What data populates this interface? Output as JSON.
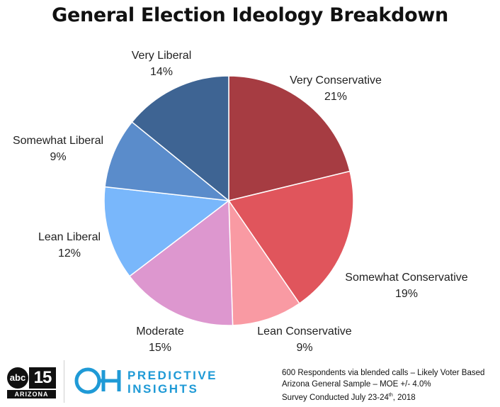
{
  "title": "General Election Ideology Breakdown",
  "chart_data": {
    "type": "pie",
    "title": "General Election Ideology Breakdown",
    "start_angle_deg": 0,
    "direction": "clockwise",
    "slices": [
      {
        "label": "Very Conservative",
        "value": 21,
        "value_label": "21%",
        "color": "#a63c42"
      },
      {
        "label": "Somewhat Conservative",
        "value": 19,
        "value_label": "19%",
        "color": "#e0555c"
      },
      {
        "label": "Lean Conservative",
        "value": 9,
        "value_label": "9%",
        "color": "#f99aa3"
      },
      {
        "label": "Moderate",
        "value": 15,
        "value_label": "15%",
        "color": "#dd97cf"
      },
      {
        "label": "Lean Liberal",
        "value": 12,
        "value_label": "12%",
        "color": "#79b7fb"
      },
      {
        "label": "Somewhat Liberal",
        "value": 9,
        "value_label": "9%",
        "color": "#5a8ccb"
      },
      {
        "label": "Very Liberal",
        "value": 14,
        "value_label": "14%",
        "color": "#3e6493"
      }
    ]
  },
  "footer": {
    "abc_logo": {
      "circle_text": "abc",
      "number": "15",
      "subtitle": "ARIZONA"
    },
    "predictive_insights": {
      "mark": "OH",
      "line1": "PREDICTIVE",
      "line2": "INSIGHTS",
      "color": "#1f9ad6"
    },
    "survey_line1": "600 Respondents via blended calls – Likely Voter Based",
    "survey_line2": "Arizona General Sample – MOE +/- 4.0%",
    "survey_line3_prefix": "Survey Conducted July 23-24",
    "survey_line3_sup": "th",
    "survey_line3_suffix": ", 2018"
  }
}
